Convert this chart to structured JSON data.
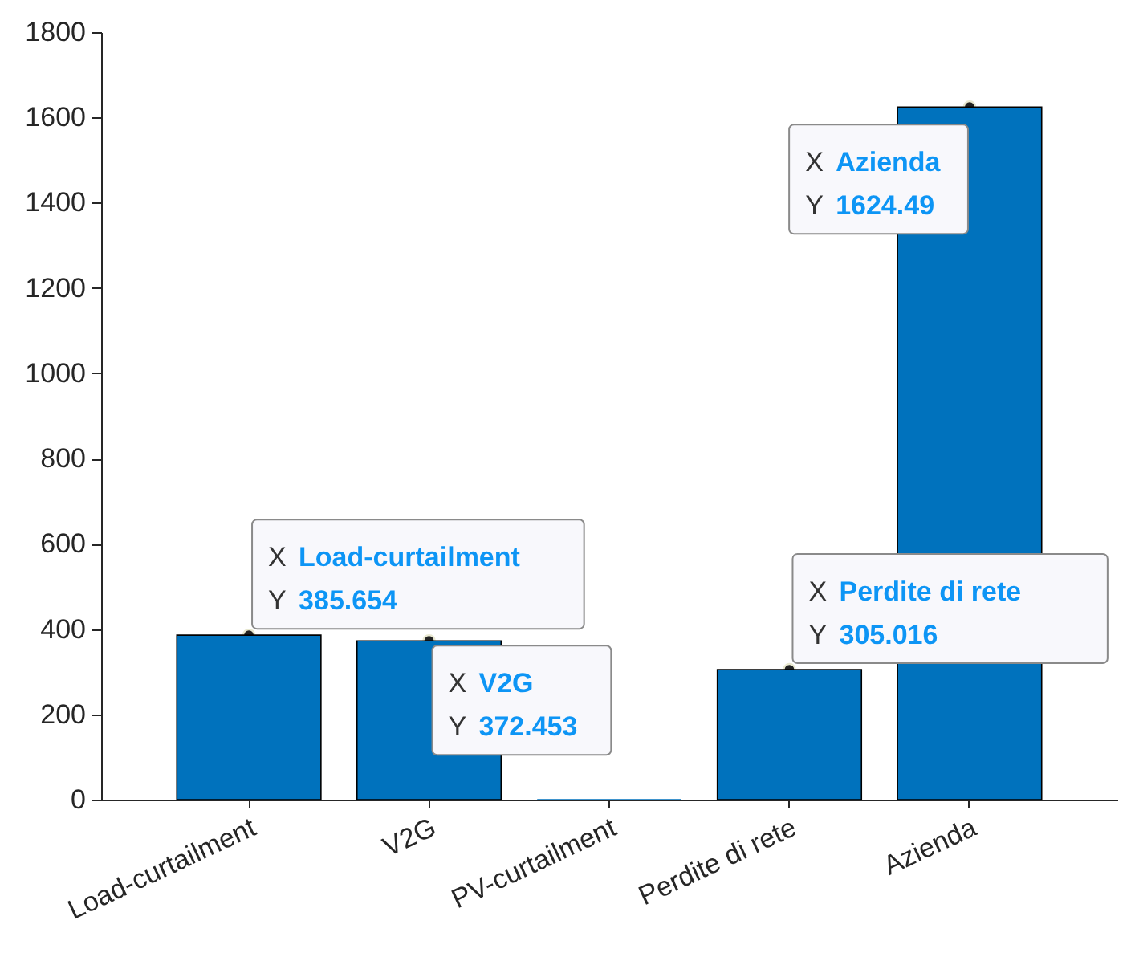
{
  "chart_data": {
    "type": "bar",
    "categories": [
      "Load-curtailment",
      "V2G",
      "PV-curtailment",
      "Perdite di rete",
      "Azienda"
    ],
    "values": [
      385.654,
      372.453,
      0,
      305.016,
      1624.49
    ],
    "color": "#0072bd",
    "ylim": [
      0,
      1800
    ],
    "yticks": [
      0,
      200,
      400,
      600,
      800,
      1000,
      1200,
      1400,
      1600,
      1800
    ],
    "grid": false,
    "annotations": [
      {
        "text": "X Load-curtailment\nY 385.654",
        "x": "Load-curtailment",
        "y": 385.654
      },
      {
        "text": "X V2G\nY 372.453",
        "x": "V2G",
        "y": 372.453
      },
      {
        "text": "X Perdite di rete\nY 305.016",
        "x": "Perdite di rete",
        "y": 305.016
      },
      {
        "text": "X Azienda\nY 1624.49",
        "x": "Azienda",
        "y": 1624.49
      }
    ]
  }
}
